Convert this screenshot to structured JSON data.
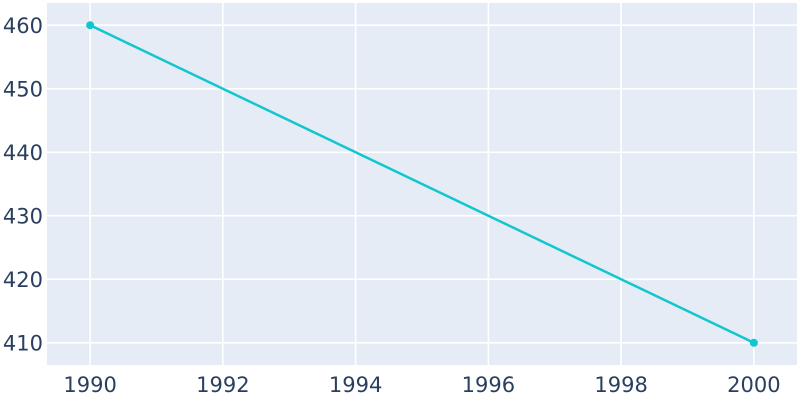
{
  "chart_data": {
    "type": "line",
    "title": "",
    "xlabel": "",
    "ylabel": "",
    "x": [
      1990,
      2000
    ],
    "y": [
      460,
      410
    ],
    "x_ticks": [
      1990,
      1992,
      1994,
      1996,
      1998,
      2000
    ],
    "y_ticks": [
      410,
      420,
      430,
      440,
      450,
      460
    ],
    "xlim": [
      1989.35,
      2000.65
    ],
    "ylim": [
      406.5,
      463.5
    ],
    "grid": true,
    "legend": false,
    "marker": "circle",
    "colors": {
      "line": "#11c6cd",
      "plot_background": "#e5ecf6",
      "gridline": "#ffffff",
      "tick_text": "#2a3f5f",
      "page_background": "#ffffff"
    }
  }
}
